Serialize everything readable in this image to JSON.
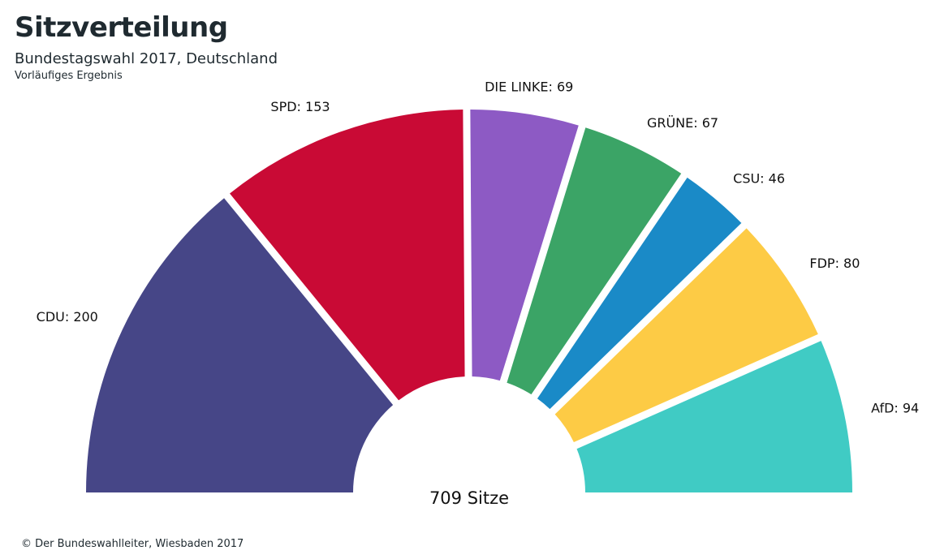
{
  "header": {
    "title": "Sitzverteilung",
    "subtitle": "Bundestagswahl 2017, Deutschland",
    "note": "Vorläufiges Ergebnis"
  },
  "footer": {
    "source": "© Der Bundeswahlleiter, Wiesbaden 2017"
  },
  "chart_data": {
    "type": "pie",
    "variant": "half-donut (parliament seat distribution)",
    "title": "Sitzverteilung",
    "subtitle": "Bundestagswahl 2017, Deutschland",
    "center_label": "709 Sitze",
    "total": 709,
    "slices": [
      {
        "label": "CDU: 200",
        "name": "CDU",
        "value": 200,
        "color": "#464687"
      },
      {
        "label": "SPD: 153",
        "name": "SPD",
        "value": 153,
        "color": "#c90a35"
      },
      {
        "label": "DIE LINKE: 69",
        "name": "DIE LINKE",
        "value": 69,
        "color": "#8d5ac4"
      },
      {
        "label": "GRÜNE: 67",
        "name": "GRÜNE",
        "value": 67,
        "color": "#3ba466"
      },
      {
        "label": "CSU: 46",
        "name": "CSU",
        "value": 46,
        "color": "#1a8ac7"
      },
      {
        "label": "FDP: 80",
        "name": "FDP",
        "value": 80,
        "color": "#fdcb45"
      },
      {
        "label": "AfD: 94",
        "name": "AfD",
        "value": 94,
        "color": "#40cbc4"
      }
    ]
  }
}
